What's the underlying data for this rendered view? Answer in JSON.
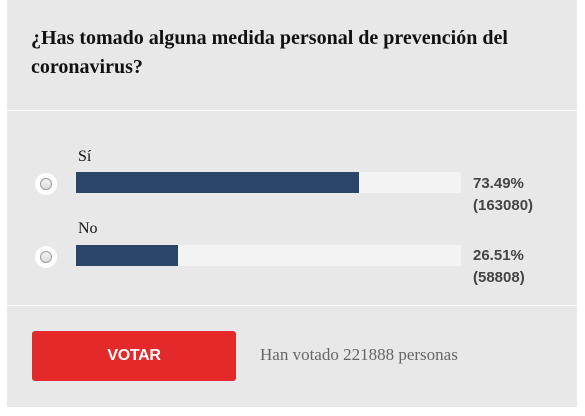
{
  "poll": {
    "question": "¿Has tomado alguna medida personal de prevención del coronavirus?",
    "options": [
      {
        "label": "Sí",
        "percent_text": "73.49%",
        "count_text": "(163080)",
        "percent": 73.49
      },
      {
        "label": "No",
        "percent_text": "26.51%",
        "count_text": "(58808)",
        "percent": 26.51
      }
    ],
    "vote_button": "VOTAR",
    "total_votes_text": "Han votado 221888 personas"
  },
  "colors": {
    "panel_background": "#e8e8e8",
    "bar_fill": "#2b4569",
    "bar_track": "#f3f3f3",
    "vote_button": "#e4292b"
  }
}
